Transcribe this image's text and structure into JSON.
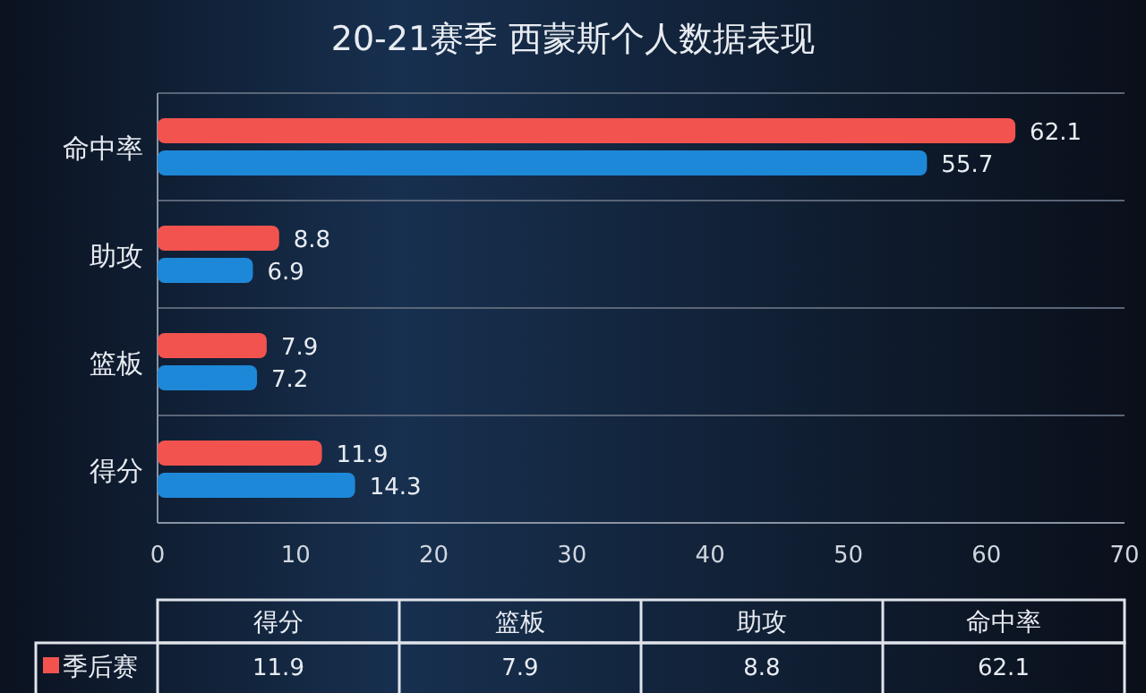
{
  "chart_data": [
    {
      "type": "bar",
      "orientation": "horizontal",
      "title": "20-21赛季 西蒙斯个人数据表现",
      "categories": [
        "命中率",
        "助攻",
        "篮板",
        "得分"
      ],
      "series": [
        {
          "color": "#f2534f",
          "values": [
            62.1,
            8.8,
            7.9,
            11.9
          ]
        },
        {
          "color": "#1e88d8",
          "values": [
            55.7,
            6.9,
            7.2,
            14.3
          ]
        }
      ],
      "xlim": [
        0,
        70
      ],
      "xticks": [
        0,
        10,
        20,
        30,
        40,
        50,
        60,
        70
      ],
      "grid": "y",
      "data_labels": true
    },
    {
      "type": "other",
      "categories": [
        "得分",
        "篮板",
        "助攻",
        "命中率"
      ],
      "series": [
        {
          "name": "季后赛",
          "color": "#f2534f",
          "values": [
            11.9,
            7.9,
            8.8,
            62.1
          ]
        }
      ],
      "data_labels": true
    }
  ]
}
